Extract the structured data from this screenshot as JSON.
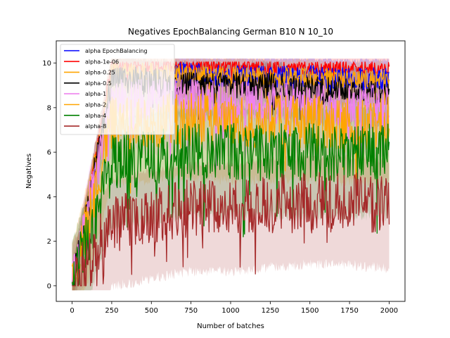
{
  "chart_data": {
    "type": "line",
    "title": "Negatives EpochBalancing German B10 N 10_10",
    "xlabel": "Number of batches",
    "ylabel": "Negatives",
    "xlim": [
      -100,
      2100
    ],
    "ylim": [
      -0.7,
      11
    ],
    "xticks": [
      0,
      250,
      500,
      750,
      1000,
      1250,
      1500,
      1750,
      2000
    ],
    "xtick_labels": [
      "0",
      "250",
      "500",
      "750",
      "1000",
      "1250",
      "1500",
      "1750",
      "2000"
    ],
    "yticks": [
      0,
      2,
      4,
      6,
      8,
      10
    ],
    "ytick_labels": [
      "0",
      "2",
      "4",
      "6",
      "8",
      "10"
    ],
    "grid": false,
    "legend_position": "top-left",
    "series": [
      {
        "name": "alpha EpochBalancing",
        "color": "#0000ff",
        "start_x": 650,
        "mean": [
          9.8,
          9.7,
          9.6,
          9.5,
          9.4,
          9.4,
          9.4,
          9.3,
          9.3
        ],
        "spread": 0.5
      },
      {
        "name": "alpha-1e-06",
        "color": "#ff0000",
        "mean": [
          0,
          9.9,
          9.9,
          9.9,
          9.9,
          9.8,
          9.8,
          9.8,
          9.8
        ],
        "spread": 0.3
      },
      {
        "name": "alpha-0.25",
        "color": "#ffa500",
        "mean": [
          0,
          9.7,
          9.6,
          9.5,
          9.5,
          9.4,
          9.4,
          9.3,
          9.3
        ],
        "spread": 0.4
      },
      {
        "name": "alpha-0.5",
        "color": "#000000",
        "mean": [
          0,
          9.3,
          9.2,
          9.0,
          9.0,
          9.0,
          8.8,
          8.8,
          8.5
        ],
        "spread": 0.6
      },
      {
        "name": "alpha-1",
        "color": "#ee82ee",
        "mean": [
          0,
          8.3,
          8.3,
          8.3,
          8.2,
          8.2,
          8.1,
          8.1,
          8.0
        ],
        "spread": 1.0
      },
      {
        "name": "alpha-2",
        "color": "#ffa500",
        "mean": [
          0,
          7.3,
          7.4,
          7.5,
          7.4,
          7.4,
          7.4,
          7.3,
          7.3
        ],
        "spread": 1.2
      },
      {
        "name": "alpha-4",
        "color": "#008000",
        "mean": [
          0,
          5.5,
          5.8,
          6.0,
          6.0,
          6.0,
          6.0,
          6.0,
          6.0
        ],
        "spread": 1.3
      },
      {
        "name": "alpha-8",
        "color": "#a52a2a",
        "mean": [
          0,
          2.8,
          3.2,
          3.5,
          3.5,
          3.7,
          3.8,
          3.8,
          3.6
        ],
        "spread": 1.3
      }
    ]
  }
}
